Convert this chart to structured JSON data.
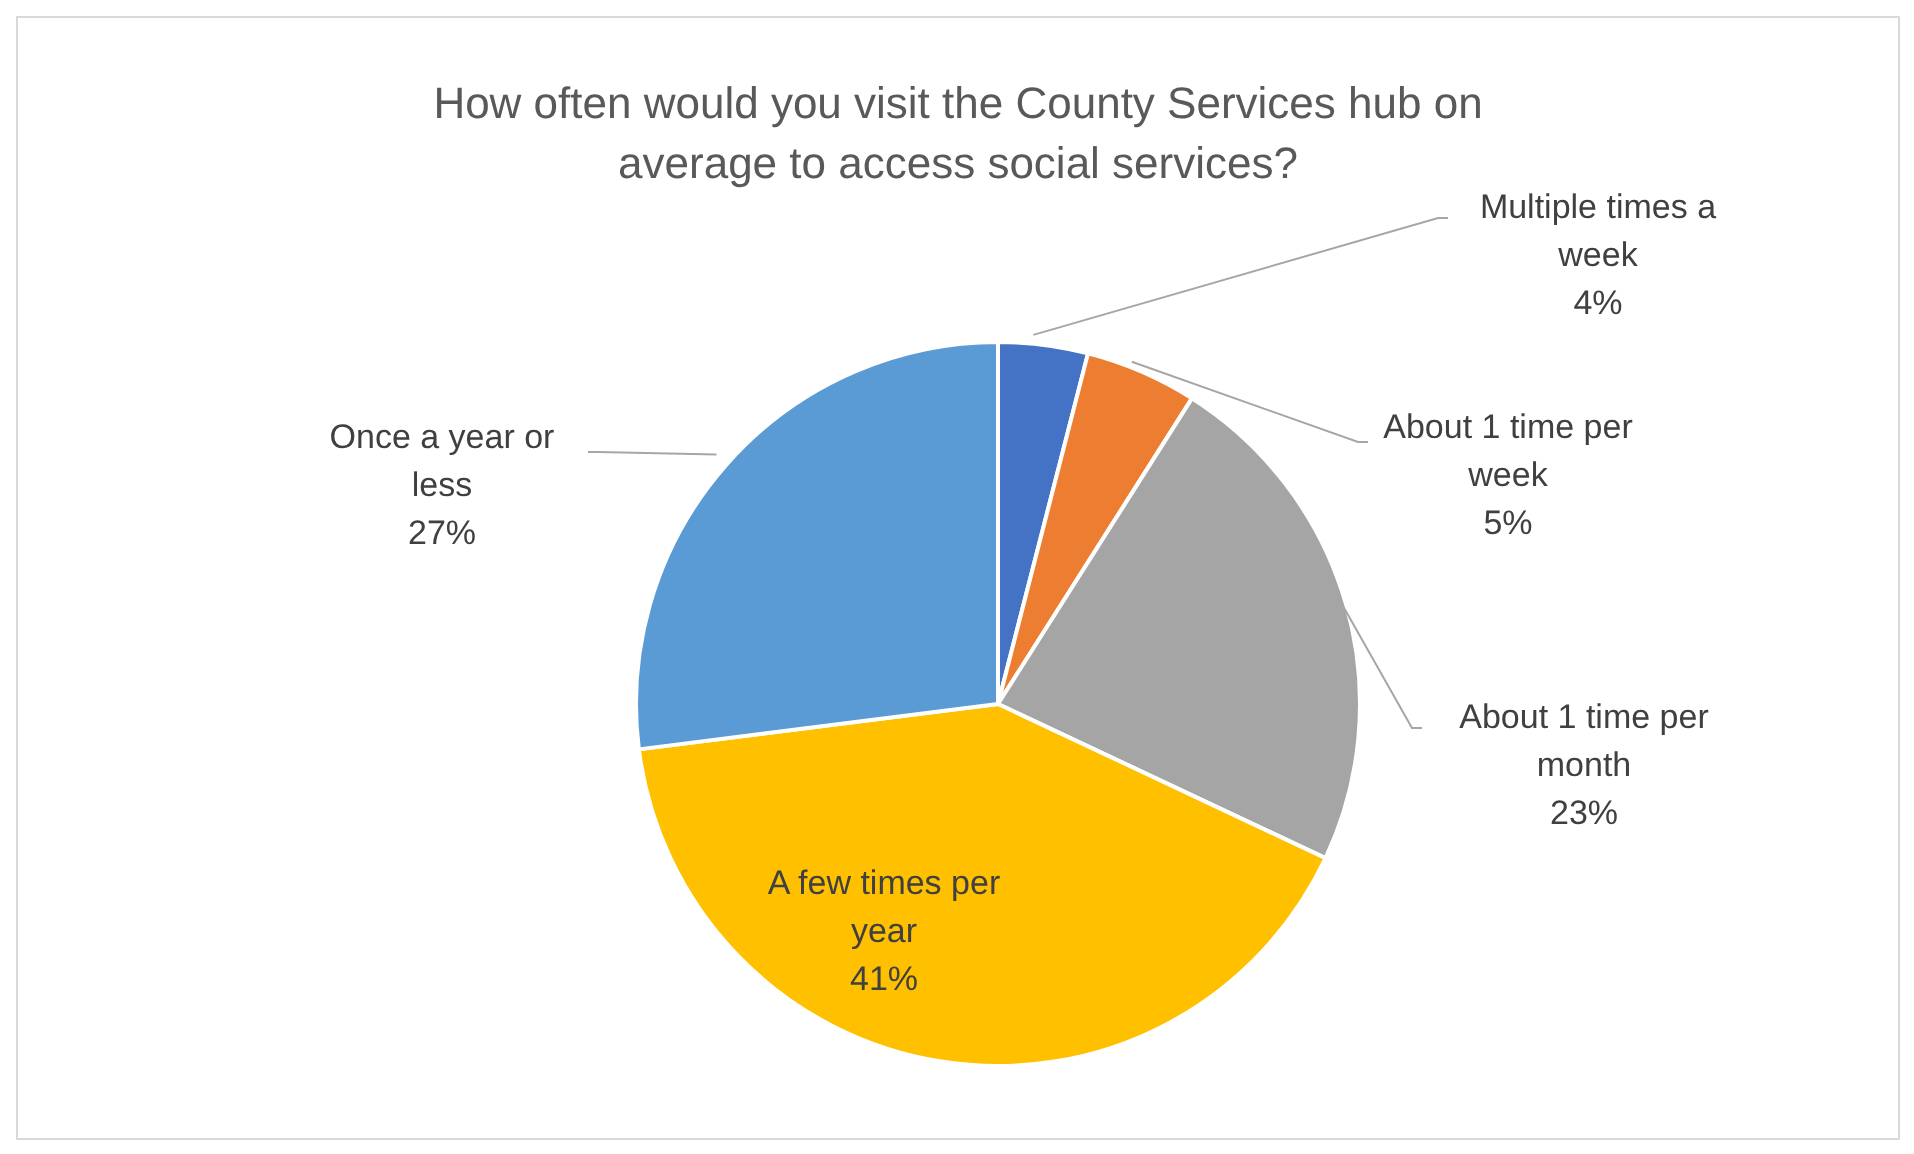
{
  "chart_data": {
    "type": "pie",
    "title": "How often would you visit the County Services hub on average to access social services?",
    "categories": [
      "Multiple times a week",
      "About 1 time per week",
      "About 1 time per month",
      "A few times per year",
      "Once a year or less"
    ],
    "values": [
      4,
      5,
      23,
      41,
      27
    ],
    "colors": [
      "#4472c4",
      "#ed7d31",
      "#a5a5a5",
      "#ffc000",
      "#5b9bd5"
    ],
    "value_labels": [
      "4%",
      "5%",
      "23%",
      "41%",
      "27%"
    ]
  }
}
